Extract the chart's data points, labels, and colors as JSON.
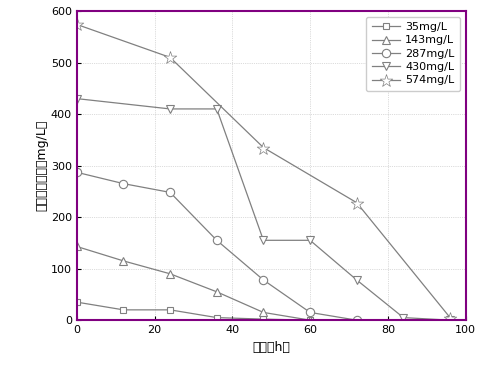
{
  "series": [
    {
      "label": "35mg/L",
      "marker": "s",
      "x": [
        0,
        12,
        24,
        36,
        48,
        60
      ],
      "y": [
        35,
        20,
        20,
        5,
        2,
        0
      ]
    },
    {
      "label": "143mg/L",
      "marker": "^",
      "x": [
        0,
        12,
        24,
        36,
        48,
        60
      ],
      "y": [
        143,
        115,
        90,
        55,
        15,
        0
      ]
    },
    {
      "label": "287mg/L",
      "marker": "o",
      "x": [
        0,
        12,
        24,
        36,
        48,
        60,
        72
      ],
      "y": [
        287,
        265,
        248,
        155,
        78,
        15,
        0
      ]
    },
    {
      "label": "430mg/L",
      "marker": "v",
      "x": [
        0,
        24,
        36,
        48,
        60,
        72,
        84,
        96
      ],
      "y": [
        430,
        410,
        410,
        155,
        155,
        78,
        5,
        0
      ]
    },
    {
      "label": "574mg/L",
      "marker": "$\\star$",
      "x": [
        0,
        24,
        48,
        72,
        96
      ],
      "y": [
        574,
        510,
        335,
        228,
        5
      ]
    }
  ],
  "line_color": "#808080",
  "xlim": [
    0,
    100
  ],
  "ylim": [
    0,
    600
  ],
  "xticks": [
    0,
    20,
    40,
    60,
    80,
    100
  ],
  "yticks": [
    0,
    100,
    200,
    300,
    400,
    500,
    600
  ],
  "xlabel": "时间（h）",
  "ylabel": "乙酸乙酯浓度（mg/L）",
  "border_color": "#800080",
  "background_color": "#ffffff"
}
